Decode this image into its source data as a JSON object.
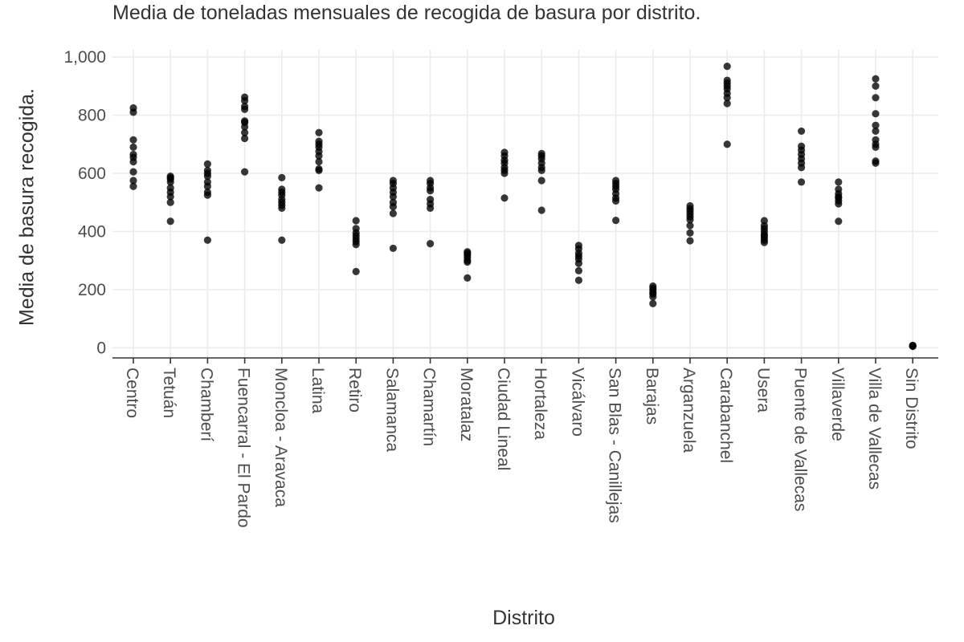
{
  "chart_data": {
    "type": "scatter",
    "title": "Media de toneladas mensuales de recogida de basura por distrito.",
    "xlabel": "Distrito",
    "ylabel": "Media de basura recogida.",
    "ylim": [
      -35,
      1025
    ],
    "yticks": [
      0,
      200,
      400,
      600,
      800,
      1000
    ],
    "ytick_labels": [
      "0",
      "200",
      "400",
      "600",
      "800",
      "1,000"
    ],
    "grid": true,
    "point_color": "#000000",
    "categories": [
      "Centro",
      "Tetuán",
      "Chamberí",
      "Fuencarral - El Pardo",
      "Moncloa - Aravaca",
      "Latina",
      "Retiro",
      "Salamanca",
      "Chamartín",
      "Moratalaz",
      "Ciudad Lineal",
      "Hortaleza",
      "Vicálvaro",
      "San Blas - Canillejas",
      "Barajas",
      "Arganzuela",
      "Carabanchel",
      "Usera",
      "Puente de Vallecas",
      "Villaverde",
      "Villa de Vallecas",
      "Sin Distrito"
    ],
    "values": [
      [
        825,
        810,
        715,
        690,
        665,
        655,
        640,
        605,
        575,
        555
      ],
      [
        590,
        585,
        580,
        570,
        550,
        535,
        520,
        500,
        435
      ],
      [
        632,
        610,
        600,
        590,
        570,
        555,
        535,
        525,
        370
      ],
      [
        862,
        850,
        830,
        820,
        780,
        775,
        760,
        740,
        720,
        605
      ],
      [
        585,
        545,
        535,
        525,
        510,
        500,
        490,
        480,
        370
      ],
      [
        740,
        710,
        700,
        690,
        675,
        660,
        640,
        615,
        610,
        550
      ],
      [
        437,
        410,
        395,
        385,
        375,
        365,
        355,
        262
      ],
      [
        575,
        565,
        550,
        535,
        520,
        500,
        485,
        462,
        342
      ],
      [
        575,
        565,
        550,
        540,
        510,
        495,
        480,
        358
      ],
      [
        330,
        325,
        318,
        310,
        300,
        295,
        240
      ],
      [
        672,
        660,
        645,
        635,
        620,
        610,
        600,
        515
      ],
      [
        668,
        660,
        650,
        635,
        620,
        610,
        575,
        473
      ],
      [
        352,
        340,
        325,
        315,
        305,
        290,
        265,
        232
      ],
      [
        575,
        565,
        555,
        545,
        530,
        515,
        505,
        438
      ],
      [
        212,
        205,
        198,
        190,
        185,
        175,
        152
      ],
      [
        488,
        478,
        470,
        460,
        450,
        440,
        420,
        395,
        368
      ],
      [
        968,
        920,
        910,
        900,
        890,
        875,
        860,
        840,
        700
      ],
      [
        437,
        420,
        410,
        400,
        390,
        385,
        378,
        370,
        362
      ],
      [
        745,
        693,
        680,
        665,
        650,
        635,
        620,
        570
      ],
      [
        570,
        545,
        530,
        520,
        515,
        505,
        495,
        435
      ],
      [
        925,
        900,
        860,
        805,
        765,
        745,
        715,
        700,
        690,
        642,
        635
      ],
      [
        8,
        7,
        6,
        5
      ]
    ]
  }
}
